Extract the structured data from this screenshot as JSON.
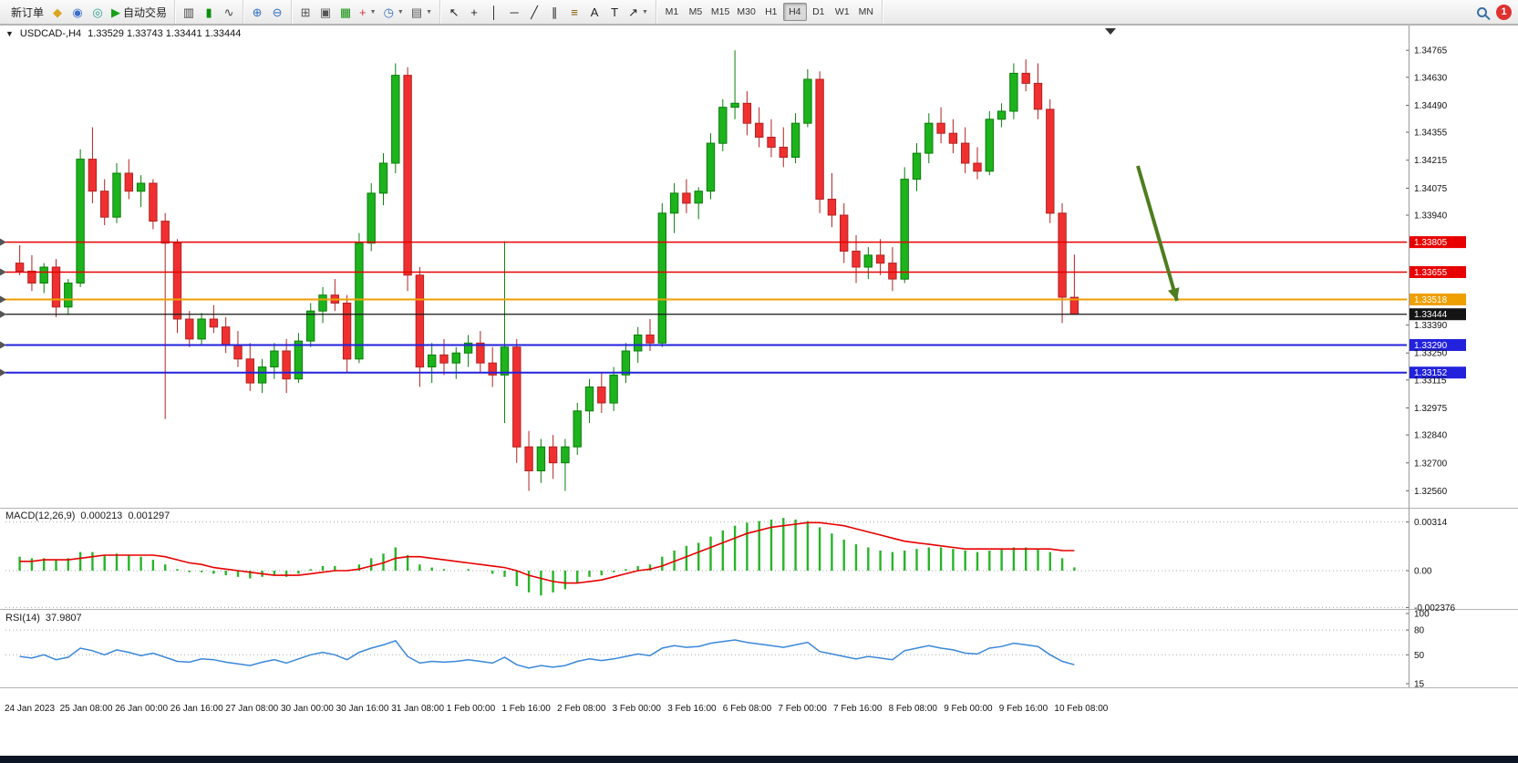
{
  "toolbar": {
    "notification_count": "1",
    "timeframes": [
      "M1",
      "M5",
      "M15",
      "M30",
      "H1",
      "H4",
      "D1",
      "W1",
      "MN"
    ],
    "active_timeframe": "H4",
    "groups": [
      {
        "name": "trade-group",
        "items": [
          {
            "name": "new-order-button",
            "label": "新订单"
          },
          {
            "name": "chart-symbol-icon",
            "glyph": "◆",
            "color": "#d9a520"
          },
          {
            "name": "market-watch-icon",
            "glyph": "◉",
            "color": "#3b6fc9"
          },
          {
            "name": "web-terminal-icon",
            "glyph": "◎",
            "color": "#2a9d8f"
          },
          {
            "name": "auto-trading-button",
            "glyph": "▶",
            "color": "#17a017",
            "label": "自动交易"
          }
        ]
      },
      {
        "name": "chart-type-group",
        "items": [
          {
            "name": "bar-chart-icon",
            "glyph": "▥",
            "color": "#444444"
          },
          {
            "name": "candlestick-chart-icon",
            "glyph": "▮",
            "color": "#0b8f0b"
          },
          {
            "name": "line-chart-icon",
            "glyph": "∿",
            "color": "#444444"
          }
        ]
      },
      {
        "name": "zoom-group",
        "items": [
          {
            "name": "zoom-in-icon",
            "glyph": "⊕",
            "color": "#2f6fbf"
          },
          {
            "name": "zoom-out-icon",
            "glyph": "⊖",
            "color": "#2f6fbf"
          }
        ]
      },
      {
        "name": "windows-group",
        "items": [
          {
            "name": "tile-windows-icon",
            "glyph": "⊞",
            "color": "#555555"
          },
          {
            "name": "cascade-windows-icon",
            "glyph": "▣",
            "color": "#555555"
          },
          {
            "name": "grid-icon",
            "glyph": "▦",
            "color": "#12910c"
          },
          {
            "name": "new-chart-icon",
            "glyph": "+",
            "color": "#cc3333",
            "dropdown": true
          },
          {
            "name": "period-icon",
            "glyph": "◷",
            "color": "#2f6fbf",
            "dropdown": true
          },
          {
            "name": "templates-icon",
            "glyph": "▤",
            "color": "#555555",
            "dropdown": true
          }
        ]
      },
      {
        "name": "objects-group",
        "items": [
          {
            "name": "cursor-icon",
            "glyph": "↖",
            "color": "#222222"
          },
          {
            "name": "crosshair-icon",
            "glyph": "+",
            "color": "#222222"
          },
          {
            "name": "vertical-line-icon",
            "glyph": "│",
            "color": "#222222"
          },
          {
            "name": "horizontal-line-icon",
            "glyph": "─",
            "color": "#222222"
          },
          {
            "name": "trendline-icon",
            "glyph": "╱",
            "color": "#222222"
          },
          {
            "name": "channel-icon",
            "glyph": "∥",
            "color": "#222222"
          },
          {
            "name": "fibonacci-icon",
            "glyph": "≡",
            "color": "#885500"
          },
          {
            "name": "text-icon",
            "glyph": "A",
            "color": "#222222"
          },
          {
            "name": "text-label-icon",
            "glyph": "T",
            "color": "#222222"
          },
          {
            "name": "arrows-icon",
            "glyph": "↗",
            "color": "#222222",
            "dropdown": true
          }
        ]
      }
    ]
  },
  "chart": {
    "header": "USDCAD-,H4",
    "ohlc_text": "1.33529 1.33743 1.33441 1.33444"
  },
  "chart_data": {
    "type": "candlestick",
    "symbol": "USDCAD",
    "timeframe": "H4",
    "current_bar": {
      "open": 1.33529,
      "high": 1.33743,
      "low": 1.33441,
      "close": 1.33444
    },
    "ylim": [
      1.3248,
      1.3488
    ],
    "colors": {
      "up": "#1db31d",
      "up_border": "#0a7d0a",
      "down": "#f03030",
      "down_border": "#b22222",
      "macd_histogram": "#28b428",
      "macd_signal": "#e80000",
      "rsi": "#3a87d9"
    },
    "price_axis": [
      1.34765,
      1.3463,
      1.3449,
      1.34355,
      1.34215,
      1.34075,
      1.3394,
      1.3339,
      1.3325,
      1.33115,
      1.32975,
      1.3284,
      1.327,
      1.3256
    ],
    "hlines": [
      {
        "price": 1.33805,
        "color": "#e80000",
        "width": 1.5
      },
      {
        "price": 1.33655,
        "color": "#e80000",
        "width": 1.5
      },
      {
        "price": 1.33518,
        "color": "#ef9f00",
        "width": 2
      },
      {
        "price": 1.33444,
        "color": "#141414",
        "width": 1.2,
        "current": true
      },
      {
        "price": 1.3329,
        "color": "#2222dd",
        "width": 2
      },
      {
        "price": 1.33152,
        "color": "#2222dd",
        "width": 2
      }
    ],
    "candles": [
      [
        1.337,
        1.3379,
        1.3364,
        1.3366
      ],
      [
        1.3366,
        1.3374,
        1.3356,
        1.336
      ],
      [
        1.336,
        1.337,
        1.3355,
        1.3368
      ],
      [
        1.3368,
        1.3372,
        1.3343,
        1.3348
      ],
      [
        1.3348,
        1.3362,
        1.3344,
        1.336
      ],
      [
        1.336,
        1.3427,
        1.3358,
        1.3422
      ],
      [
        1.3422,
        1.3438,
        1.34,
        1.3406
      ],
      [
        1.3406,
        1.3412,
        1.3389,
        1.3393
      ],
      [
        1.3393,
        1.342,
        1.339,
        1.3415
      ],
      [
        1.3415,
        1.3422,
        1.3402,
        1.3406
      ],
      [
        1.3406,
        1.3414,
        1.3398,
        1.341
      ],
      [
        1.341,
        1.3412,
        1.3387,
        1.3391
      ],
      [
        1.3391,
        1.3395,
        1.3292,
        1.338
      ],
      [
        1.338,
        1.3382,
        1.3335,
        1.3342
      ],
      [
        1.3342,
        1.3346,
        1.3328,
        1.3332
      ],
      [
        1.3332,
        1.3345,
        1.3329,
        1.3342
      ],
      [
        1.3342,
        1.3349,
        1.3335,
        1.3338
      ],
      [
        1.3338,
        1.3343,
        1.3325,
        1.3329
      ],
      [
        1.3329,
        1.3336,
        1.3318,
        1.3322
      ],
      [
        1.3322,
        1.333,
        1.3306,
        1.331
      ],
      [
        1.331,
        1.3322,
        1.3305,
        1.3318
      ],
      [
        1.3318,
        1.333,
        1.3312,
        1.3326
      ],
      [
        1.3326,
        1.3332,
        1.3305,
        1.3312
      ],
      [
        1.3312,
        1.3335,
        1.331,
        1.3331
      ],
      [
        1.3331,
        1.335,
        1.3328,
        1.3346
      ],
      [
        1.3346,
        1.3358,
        1.334,
        1.3354
      ],
      [
        1.3354,
        1.3362,
        1.3346,
        1.335
      ],
      [
        1.335,
        1.3354,
        1.3315,
        1.3322
      ],
      [
        1.3322,
        1.3385,
        1.332,
        1.338
      ],
      [
        1.338,
        1.341,
        1.3376,
        1.3405
      ],
      [
        1.3405,
        1.3425,
        1.3399,
        1.342
      ],
      [
        1.342,
        1.347,
        1.3415,
        1.3464
      ],
      [
        1.3464,
        1.3468,
        1.3356,
        1.3364
      ],
      [
        1.3364,
        1.3368,
        1.3308,
        1.3318
      ],
      [
        1.3318,
        1.333,
        1.331,
        1.3324
      ],
      [
        1.3324,
        1.3332,
        1.3314,
        1.332
      ],
      [
        1.332,
        1.3328,
        1.3312,
        1.3325
      ],
      [
        1.3325,
        1.3334,
        1.3318,
        1.333
      ],
      [
        1.333,
        1.3336,
        1.3315,
        1.332
      ],
      [
        1.332,
        1.3328,
        1.3308,
        1.3314
      ],
      [
        1.3314,
        1.3381,
        1.329,
        1.3328
      ],
      [
        1.3328,
        1.3332,
        1.327,
        1.3278
      ],
      [
        1.3278,
        1.3286,
        1.3256,
        1.3266
      ],
      [
        1.3266,
        1.3282,
        1.326,
        1.3278
      ],
      [
        1.3278,
        1.3284,
        1.3262,
        1.327
      ],
      [
        1.327,
        1.3282,
        1.3256,
        1.3278
      ],
      [
        1.3278,
        1.33,
        1.3274,
        1.3296
      ],
      [
        1.3296,
        1.3312,
        1.329,
        1.3308
      ],
      [
        1.3308,
        1.3315,
        1.3295,
        1.33
      ],
      [
        1.33,
        1.3318,
        1.3296,
        1.3314
      ],
      [
        1.3314,
        1.333,
        1.331,
        1.3326
      ],
      [
        1.3326,
        1.3338,
        1.332,
        1.3334
      ],
      [
        1.3334,
        1.3342,
        1.3326,
        1.333
      ],
      [
        1.333,
        1.34,
        1.3328,
        1.3395
      ],
      [
        1.3395,
        1.341,
        1.3385,
        1.3405
      ],
      [
        1.3405,
        1.3412,
        1.3395,
        1.34
      ],
      [
        1.34,
        1.3408,
        1.3392,
        1.3406
      ],
      [
        1.3406,
        1.3435,
        1.3402,
        1.343
      ],
      [
        1.343,
        1.3452,
        1.3426,
        1.3448
      ],
      [
        1.3448,
        1.34765,
        1.3442,
        1.345
      ],
      [
        1.345,
        1.3456,
        1.3434,
        1.344
      ],
      [
        1.344,
        1.3448,
        1.3428,
        1.3433
      ],
      [
        1.3433,
        1.3442,
        1.3423,
        1.3428
      ],
      [
        1.3428,
        1.3438,
        1.3418,
        1.3423
      ],
      [
        1.3423,
        1.3445,
        1.342,
        1.344
      ],
      [
        1.344,
        1.3467,
        1.3438,
        1.3462
      ],
      [
        1.3462,
        1.3466,
        1.3395,
        1.3402
      ],
      [
        1.3402,
        1.3415,
        1.3388,
        1.3394
      ],
      [
        1.3394,
        1.34,
        1.337,
        1.3376
      ],
      [
        1.3376,
        1.3384,
        1.336,
        1.3368
      ],
      [
        1.3368,
        1.3378,
        1.3362,
        1.3374
      ],
      [
        1.3374,
        1.3382,
        1.3364,
        1.337
      ],
      [
        1.337,
        1.3378,
        1.3356,
        1.3362
      ],
      [
        1.3362,
        1.3418,
        1.336,
        1.3412
      ],
      [
        1.3412,
        1.343,
        1.3406,
        1.3425
      ],
      [
        1.3425,
        1.3445,
        1.342,
        1.344
      ],
      [
        1.344,
        1.3448,
        1.343,
        1.3435
      ],
      [
        1.3435,
        1.3442,
        1.3425,
        1.343
      ],
      [
        1.343,
        1.3438,
        1.3415,
        1.342
      ],
      [
        1.342,
        1.3428,
        1.3412,
        1.3416
      ],
      [
        1.3416,
        1.3446,
        1.3414,
        1.3442
      ],
      [
        1.3442,
        1.345,
        1.3438,
        1.3446
      ],
      [
        1.3446,
        1.347,
        1.3442,
        1.3465
      ],
      [
        1.3465,
        1.3472,
        1.3456,
        1.346
      ],
      [
        1.346,
        1.347,
        1.3442,
        1.3447
      ],
      [
        1.3447,
        1.3452,
        1.339,
        1.3395
      ],
      [
        1.3395,
        1.34,
        1.334,
        1.33529
      ],
      [
        1.33529,
        1.33743,
        1.33441,
        1.33444
      ]
    ],
    "time_labels": [
      "24 Jan 2023",
      "25 Jan 08:00",
      "26 Jan 00:00",
      "26 Jan 16:00",
      "27 Jan 08:00",
      "30 Jan 00:00",
      "30 Jan 16:00",
      "31 Jan 08:00",
      "1 Feb 00:00",
      "1 Feb 16:00",
      "2 Feb 08:00",
      "3 Feb 00:00",
      "3 Feb 16:00",
      "6 Feb 08:00",
      "7 Feb 00:00",
      "7 Feb 16:00",
      "8 Feb 08:00",
      "9 Feb 00:00",
      "9 Feb 16:00",
      "10 Feb 08:00"
    ],
    "macd": {
      "label": "MACD(12,26,9)",
      "value_main": "0.000213",
      "value_signal": "0.001297",
      "axis": [
        {
          "v": 0.00314,
          "t": "0.00314"
        },
        {
          "v": 0,
          "t": "0.00"
        },
        {
          "v": -0.002376,
          "t": "-0.002376"
        }
      ],
      "histogram": [
        0.0009,
        0.0008,
        0.0008,
        0.0007,
        0.0008,
        0.0012,
        0.0012,
        0.001,
        0.0011,
        0.001,
        0.0009,
        0.0007,
        0.0004,
        0.0001,
        -0.0001,
        -0.0001,
        -0.0002,
        -0.0003,
        -0.0004,
        -0.0005,
        -0.0004,
        -0.0003,
        -0.0004,
        -0.0002,
        0.0001,
        0.0003,
        0.0003,
        0,
        0.0004,
        0.0008,
        0.0011,
        0.0015,
        0.001,
        0.0004,
        0.0002,
        0.0001,
        0,
        0.0001,
        0,
        -0.0002,
        -0.0004,
        -0.001,
        -0.0014,
        -0.0016,
        -0.0014,
        -0.0012,
        -0.0008,
        -0.0004,
        -0.0003,
        -0.0001,
        0.0001,
        0.0003,
        0.0004,
        0.0009,
        0.0013,
        0.0016,
        0.0018,
        0.0022,
        0.0026,
        0.0029,
        0.0031,
        0.0032,
        0.0033,
        0.0034,
        0.0033,
        0.0032,
        0.0028,
        0.0024,
        0.002,
        0.0017,
        0.0015,
        0.0013,
        0.0012,
        0.0013,
        0.0014,
        0.0015,
        0.0015,
        0.0014,
        0.0013,
        0.0012,
        0.0013,
        0.0014,
        0.0015,
        0.0015,
        0.0014,
        0.0012,
        0.0008,
        0.000213
      ],
      "signal": [
        0.0006,
        0.0006,
        0.0007,
        0.0007,
        0.0007,
        0.0008,
        0.0009,
        0.001,
        0.001,
        0.001,
        0.001,
        0.001,
        0.0009,
        0.0007,
        0.0005,
        0.0004,
        0.0002,
        0.0001,
        0,
        -0.0001,
        -0.0002,
        -0.0003,
        -0.0003,
        -0.0003,
        -0.0002,
        -0.0001,
        0,
        0,
        0.0001,
        0.0003,
        0.0005,
        0.0008,
        0.0009,
        0.0009,
        0.0008,
        0.0007,
        0.0006,
        0.0005,
        0.0004,
        0.0003,
        0.0002,
        0,
        -0.0003,
        -0.0005,
        -0.0007,
        -0.0008,
        -0.0008,
        -0.0007,
        -0.0006,
        -0.0004,
        -0.0002,
        0,
        0.0001,
        0.0003,
        0.0006,
        0.0009,
        0.0012,
        0.0015,
        0.0018,
        0.0021,
        0.0024,
        0.0026,
        0.0028,
        0.0029,
        0.003,
        0.0031,
        0.0031,
        0.003,
        0.0029,
        0.0027,
        0.0025,
        0.0023,
        0.0021,
        0.0019,
        0.0018,
        0.0017,
        0.0016,
        0.0015,
        0.0014,
        0.0014,
        0.0014,
        0.0014,
        0.0014,
        0.0014,
        0.0014,
        0.0014,
        0.0013,
        0.001297
      ]
    },
    "rsi": {
      "label": "RSI(14)",
      "value_text": "37.9807",
      "axis": [
        {
          "v": 100,
          "t": "100"
        },
        {
          "v": 80,
          "t": "80",
          "line": true
        },
        {
          "v": 50,
          "t": "50",
          "line": true
        },
        {
          "v": 15,
          "t": "15"
        }
      ],
      "values": [
        48,
        46,
        50,
        44,
        47,
        58,
        55,
        50,
        56,
        53,
        49,
        52,
        47,
        42,
        41,
        45,
        44,
        41,
        39,
        37,
        41,
        44,
        40,
        45,
        50,
        53,
        50,
        44,
        53,
        58,
        62,
        67,
        48,
        40,
        42,
        41,
        42,
        44,
        42,
        40,
        47,
        38,
        34,
        37,
        35,
        37,
        42,
        45,
        43,
        45,
        48,
        51,
        49,
        58,
        61,
        59,
        60,
        64,
        66,
        68,
        65,
        63,
        61,
        59,
        62,
        65,
        54,
        51,
        48,
        45,
        48,
        46,
        44,
        55,
        58,
        61,
        58,
        56,
        52,
        51,
        58,
        60,
        64,
        62,
        60,
        50,
        42,
        37.98
      ]
    },
    "annotation_arrow": {
      "from": [
        1248,
        182
      ],
      "to": [
        1291,
        330
      ],
      "color": "#4e7d1e"
    }
  }
}
